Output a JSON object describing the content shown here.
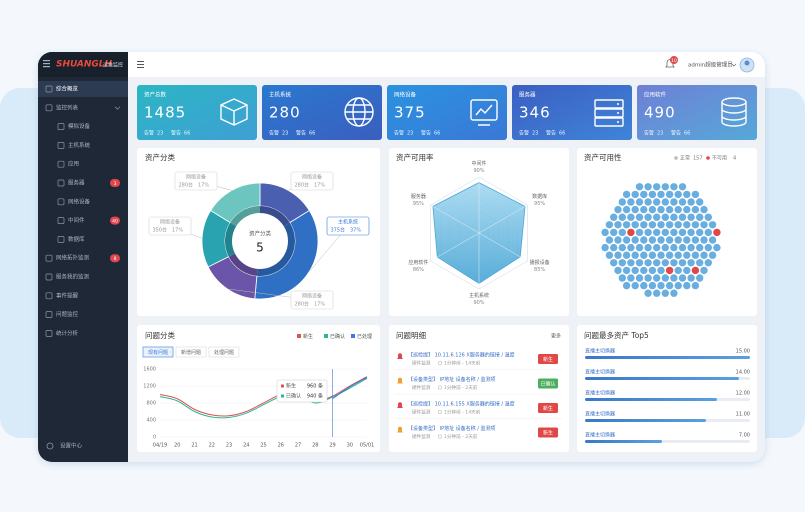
{
  "sidebar": {
    "logo": "SHUANGLH",
    "logo_sub": "运维监控",
    "menu": [
      {
        "label": "综合概览",
        "active": true
      },
      {
        "label": "监控列表"
      },
      {
        "label": "模拟设备",
        "sub": true
      },
      {
        "label": "主机系统",
        "sub": true
      },
      {
        "label": "应用",
        "sub": true
      },
      {
        "label": "服务器",
        "sub": true,
        "badge": 3
      },
      {
        "label": "网络设备",
        "sub": true
      },
      {
        "label": "中间件",
        "sub": true,
        "badge": 40
      },
      {
        "label": "数据库",
        "sub": true
      },
      {
        "label": "网络拓扑监测",
        "badge": 8
      },
      {
        "label": "服务我的监测"
      },
      {
        "label": "事件提醒"
      },
      {
        "label": "问题监控"
      },
      {
        "label": "统计分析"
      }
    ],
    "footer": "设置中心"
  },
  "topbar": {
    "notification_count": 10,
    "user": "admin超级管理员"
  },
  "kpis": [
    {
      "title": "资产总数",
      "value": 1485,
      "alarm_label": "告警",
      "alarm": 23,
      "warn_label": "警告",
      "warn": 66,
      "colors": [
        "#2bb6c4",
        "#3f9fd4"
      ]
    },
    {
      "title": "主机系统",
      "value": 280,
      "alarm_label": "告警",
      "alarm": 23,
      "warn_label": "警告",
      "warn": 66,
      "colors": [
        "#2a78cf",
        "#3a5fbf"
      ]
    },
    {
      "title": "网络设备",
      "value": 375,
      "alarm_label": "告警",
      "alarm": 23,
      "warn_label": "警告",
      "warn": 66,
      "colors": [
        "#2a93e0",
        "#3a78d6"
      ]
    },
    {
      "title": "服务器",
      "value": 346,
      "alarm_label": "告警",
      "alarm": 23,
      "warn_label": "警告",
      "warn": 66,
      "colors": [
        "#3b5fc2",
        "#3f84d8"
      ]
    },
    {
      "title": "应用软件",
      "value": 490,
      "alarm_label": "告警",
      "alarm": 23,
      "warn_label": "警告",
      "warn": 66,
      "colors": [
        "#6f7fd6",
        "#55a9d8"
      ]
    }
  ],
  "chart_data": [
    {
      "type": "pie",
      "title": "资产分类",
      "center_label": "资产分类",
      "center_value": 5,
      "categories": [
        "网络设备",
        "主机系统",
        "网络设备",
        "网络设备",
        "网络设备"
      ],
      "count_labels": [
        "280台",
        "375台",
        "280台",
        "350台",
        "280台"
      ],
      "values": [
        17,
        37,
        17,
        17,
        17
      ],
      "value_labels": [
        "17%",
        "37%",
        "17%",
        "17%",
        "17%"
      ],
      "colors": [
        "#4a5fb0",
        "#2f70c4",
        "#6b55a8",
        "#2aa3b0",
        "#6cc6bf"
      ],
      "highlight": 1
    },
    {
      "type": "radar",
      "title": "资产可用率",
      "categories": [
        "中间件",
        "数据库",
        "播报设备",
        "主机系统",
        "应用软件",
        "服务器"
      ],
      "values": [
        90,
        95,
        85,
        90,
        86,
        95
      ],
      "value_labels": [
        "90%",
        "95%",
        "85%",
        "90%",
        "86%",
        "95%"
      ],
      "rlim": [
        0,
        100
      ],
      "color": "#4aa6d6"
    },
    {
      "type": "dots",
      "title": "资产可用性",
      "series": [
        {
          "name": "正常",
          "value": 157,
          "color": "#6aaee0"
        },
        {
          "name": "不可用",
          "value": 4,
          "color": "#e04848"
        }
      ]
    },
    {
      "type": "line",
      "title": "问题分类",
      "tabs": [
        "现有问题",
        "新增问题",
        "处理问题"
      ],
      "categories": [
        "04/19",
        "20",
        "21",
        "22",
        "23",
        "24",
        "25",
        "26",
        "27",
        "28",
        "29",
        "30",
        "05/01"
      ],
      "series": [
        {
          "name": "新生",
          "color": "#d9534f",
          "values": [
            1000,
            900,
            650,
            520,
            500,
            600,
            800,
            1000,
            1050,
            850,
            960,
            1200,
            1420
          ]
        },
        {
          "name": "已确认",
          "color": "#2bb59a",
          "values": [
            950,
            850,
            600,
            470,
            460,
            560,
            760,
            950,
            1000,
            800,
            940,
            1150,
            1380
          ]
        },
        {
          "name": "已处理",
          "color": "#3a7bd5",
          "values": [
            null,
            null,
            null,
            null,
            null,
            null,
            null,
            null,
            null,
            null,
            900,
            1180,
            1400
          ]
        }
      ],
      "ylim": [
        0,
        1600
      ],
      "yticks": [
        0,
        400,
        800,
        1200,
        1600
      ],
      "tooltip": [
        {
          "name": "新生",
          "value": 960,
          "value_label": "960 条"
        },
        {
          "name": "已确认",
          "value": 940,
          "value_label": "940 条"
        }
      ]
    },
    {
      "type": "bar",
      "title": "问题最多资产 Top5",
      "categories": [
        "直播主切换器",
        "直播主切换器",
        "直播主切换器",
        "直播主切换器",
        "直播主切换器"
      ],
      "values": [
        15,
        14,
        12,
        11,
        7
      ],
      "value_labels": [
        "15.00",
        "14.00",
        "12.00",
        "11.00",
        "7.00"
      ],
      "xlim": [
        0,
        15
      ],
      "color": "#3a78c8"
    }
  ],
  "problem_details": {
    "title": "问题明细",
    "more": "更多",
    "items": [
      {
        "title": "【巡检提】 10.11.6.126 X服务器的链接 / 温度",
        "source": "硬件监测",
        "time": "1分钟前 - 14天前",
        "status": "新生",
        "level": "red"
      },
      {
        "title": "【设备类型】 IP地址 设备名称 / 监测项",
        "source": "硬件监测",
        "time": "1分钟前 - 2天前",
        "status": "已确认",
        "level": "green"
      },
      {
        "title": "【巡检提】 10.11.6.155 X服务器的链接 / 温度",
        "source": "硬件监测",
        "time": "1分钟前 - 14天前",
        "status": "新生",
        "level": "red"
      },
      {
        "title": "【设备类型】 IP地址 设备名称 / 监测项",
        "source": "硬件监测",
        "time": "1分钟前 - 2天前",
        "status": "新生",
        "level": "red"
      }
    ]
  }
}
